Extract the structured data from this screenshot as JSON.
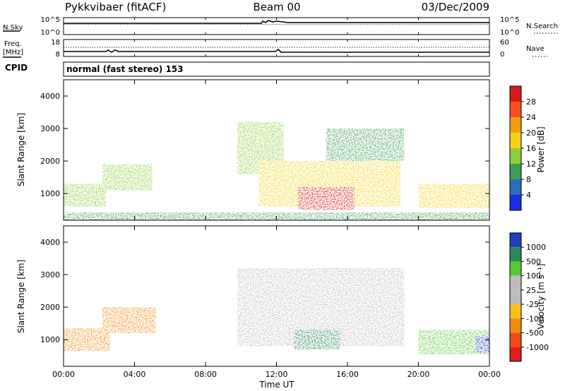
{
  "header": {
    "radar": "Pykkvibaer (fitACF)",
    "beam": "Beam 00",
    "date": "03/Dec/2009"
  },
  "strip": {
    "nsky_label": "N.Sky",
    "nsearch_label": "N.Search",
    "nsky_ticks": [
      "10^5",
      "10^0"
    ],
    "nsearch_ticks": [
      "10^5",
      "10^0"
    ],
    "freq_label_1": "Freq.",
    "freq_label_2": "[MHz]",
    "freq_ticks": [
      "18",
      "8"
    ],
    "nave_label": "Nave",
    "nave_ticks": [
      "60",
      "0"
    ],
    "cpid_label": "CPID",
    "cpid_text": "normal (fast stereo) 153"
  },
  "axis": {
    "xlabel": "Time UT",
    "ylabel": "Slant Range [km]",
    "xticks": [
      "00:00",
      "04:00",
      "08:00",
      "12:00",
      "16:00",
      "20:00",
      "00:00"
    ],
    "yticks": [
      "1000",
      "2000",
      "3000",
      "4000"
    ]
  },
  "power_scale": {
    "label": "Power [dB]",
    "ticks": [
      "28",
      "24",
      "20",
      "16",
      "12",
      "8",
      "4"
    ],
    "colors": [
      "#d7191c",
      "#f5501e",
      "#f39c12",
      "#f6d21a",
      "#8fcf3a",
      "#3f9d55",
      "#2a6fb5",
      "#1a2fe0"
    ]
  },
  "velocity_scale": {
    "label": "Velocity [m s⁻¹]",
    "ticks": [
      "1000",
      "500",
      "100",
      "25",
      "-25",
      "-100",
      "-500",
      "-1000"
    ],
    "colors": [
      "#1f3fbf",
      "#2b8a5a",
      "#5bc73a",
      "#bdbdbd",
      "#bdbdbd",
      "#f6c21a",
      "#f38c12",
      "#f04a1a",
      "#e31a1c"
    ]
  },
  "chart_data": {
    "type": "heatmap",
    "x_range_hours_ut": [
      0,
      24
    ],
    "y_range_km": [
      180,
      4500
    ],
    "panels": [
      {
        "name": "Power",
        "regions": [
          {
            "x": [
              0.0,
              2.4
            ],
            "y": [
              600,
              1300
            ],
            "value": 14
          },
          {
            "x": [
              2.2,
              5.0
            ],
            "y": [
              1100,
              1900
            ],
            "value": 13
          },
          {
            "x": [
              0.0,
              24.0
            ],
            "y": [
              180,
              420
            ],
            "value": 9
          },
          {
            "x": [
              9.8,
              12.4
            ],
            "y": [
              1600,
              3200
            ],
            "value": 13
          },
          {
            "x": [
              11.0,
              19.0
            ],
            "y": [
              600,
              2000
            ],
            "value": 16
          },
          {
            "x": [
              13.2,
              16.4
            ],
            "y": [
              500,
              1200
            ],
            "value": 26
          },
          {
            "x": [
              14.8,
              19.2
            ],
            "y": [
              2000,
              3000
            ],
            "value": 10
          },
          {
            "x": [
              20.0,
              24.0
            ],
            "y": [
              550,
              1300
            ],
            "value": 16
          }
        ]
      },
      {
        "name": "Velocity",
        "regions": [
          {
            "x": [
              0.0,
              2.6
            ],
            "y": [
              650,
              1350
            ],
            "value": -300
          },
          {
            "x": [
              2.2,
              5.2
            ],
            "y": [
              1200,
              2000
            ],
            "value": -200
          },
          {
            "x": [
              9.8,
              19.2
            ],
            "y": [
              800,
              3200
            ],
            "value": 0
          },
          {
            "x": [
              13.0,
              15.6
            ],
            "y": [
              700,
              1300
            ],
            "value": 120
          },
          {
            "x": [
              20.0,
              24.0
            ],
            "y": [
              550,
              1300
            ],
            "value": 80
          },
          {
            "x": [
              23.2,
              24.0
            ],
            "y": [
              600,
              1100
            ],
            "value": 700
          }
        ]
      }
    ]
  }
}
